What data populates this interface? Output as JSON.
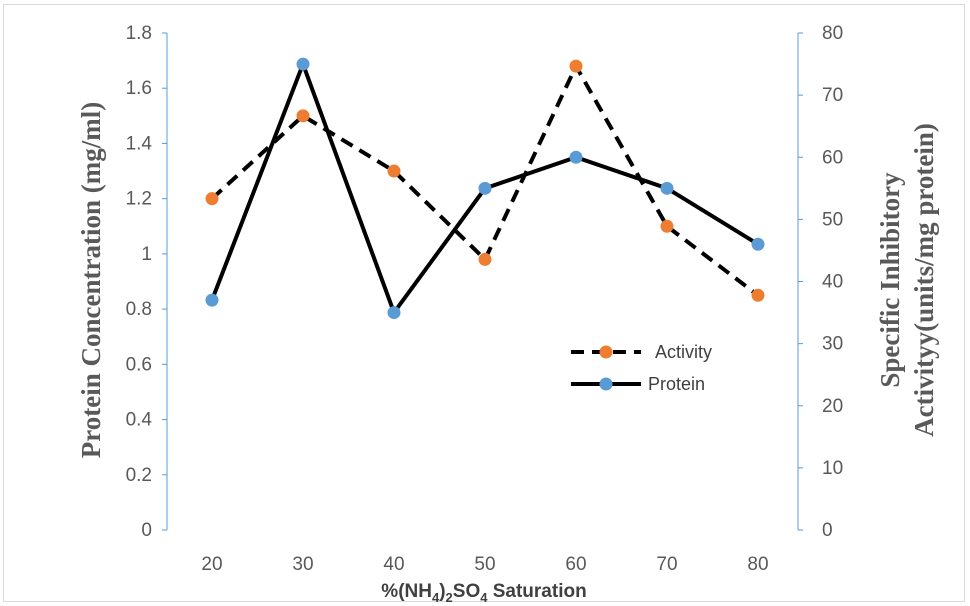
{
  "chart_data": {
    "type": "line",
    "categories": [
      20,
      30,
      40,
      50,
      60,
      70,
      80
    ],
    "xlabel": {
      "prefix": "%(NH",
      "sub1": "4",
      "mid": ")",
      "sub2": "2",
      "mid2": "SO",
      "sub3": "4",
      "suffix": " Saturation"
    },
    "ylabel_left": "Protein  Concentration (mg/ml)",
    "ylabel_right_line1": "Specific Inhibitory",
    "ylabel_right_line2": "Activityy(units/mg protein)",
    "ylim_left": [
      0,
      1.8
    ],
    "yticks_left": [
      0,
      0.2,
      0.4,
      0.6,
      0.8,
      1,
      1.2,
      1.4,
      1.6,
      1.8
    ],
    "ylim_right": [
      0,
      80
    ],
    "yticks_right": [
      0,
      10,
      20,
      30,
      40,
      50,
      60,
      70,
      80
    ],
    "grid": false,
    "legend_position": "center-right",
    "series": [
      {
        "name": "Activity",
        "axis": "left",
        "line_style": "dashed",
        "line_color": "#000000",
        "marker_color": "#ED7D31",
        "values": [
          1.2,
          1.5,
          1.3,
          0.98,
          1.68,
          1.1,
          0.85
        ]
      },
      {
        "name": "Protein",
        "axis": "right",
        "line_style": "solid",
        "line_color": "#000000",
        "marker_color": "#5B9BD5",
        "values": [
          37,
          75,
          35,
          55,
          60,
          55,
          46
        ]
      }
    ],
    "colors": {
      "left_axis": "#5B9BD5",
      "right_axis": "#5B9BD5",
      "tick_text": "#595959"
    }
  }
}
